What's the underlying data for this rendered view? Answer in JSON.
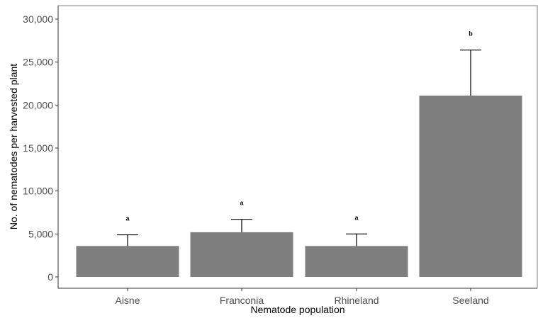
{
  "chart_data": {
    "type": "bar",
    "title": "",
    "xlabel": "Nematode population",
    "ylabel": "No. of nematodes per harvested plant",
    "categories": [
      "Aisne",
      "Franconia",
      "Rhineland",
      "Seeland"
    ],
    "values": [
      3600,
      5200,
      3600,
      21100
    ],
    "error_upper": [
      4900,
      6700,
      5000,
      26400
    ],
    "significance_letters": [
      "a",
      "a",
      "a",
      "b"
    ],
    "ylim": [
      0,
      30000
    ],
    "y_ticks": [
      0,
      5000,
      10000,
      15000,
      20000,
      25000,
      30000
    ],
    "y_tick_labels": [
      "0",
      "5,000",
      "10,000",
      "15,000",
      "20,000",
      "25,000",
      "30,000"
    ],
    "grid": false,
    "bar_color": "#7f7f7f",
    "error_bar_color": "#000000"
  }
}
